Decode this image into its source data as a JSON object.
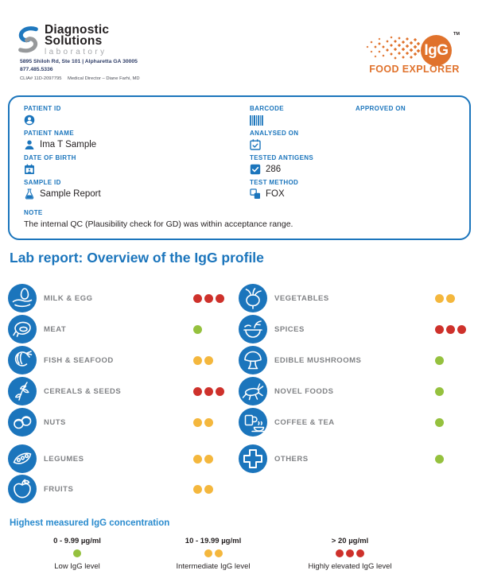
{
  "brand": {
    "name_line1": "Diagnostic",
    "name_line2": "Solutions",
    "name_line3": "laboratory",
    "address": "5895 Shiloh Rd, Ste 101  |  Alpharetta GA 30005",
    "phone": "877.485.5336",
    "clia": "CLIA# 11D-2097795",
    "director": "Medical Director – Diane Farhi, MD"
  },
  "product": {
    "badge": "IgG",
    "trademark": "TM",
    "title": "FOOD EXPLORER"
  },
  "patient_box": {
    "left": [
      {
        "label": "PATIENT ID",
        "value": "",
        "icon": "id-badge-icon"
      },
      {
        "label": "PATIENT NAME",
        "value": "Ima T Sample",
        "icon": "person-icon"
      },
      {
        "label": "DATE OF BIRTH",
        "value": "",
        "icon": "calendar-icon"
      },
      {
        "label": "SAMPLE ID",
        "value": "Sample Report",
        "icon": "flask-icon"
      }
    ],
    "middle": [
      {
        "label": "BARCODE",
        "value": "",
        "icon": "barcode-icon"
      },
      {
        "label": "ANALYSED ON",
        "value": "",
        "icon": "calendar-check-icon"
      },
      {
        "label": "TESTED ANTIGENS",
        "value": "286",
        "icon": "checkbox-check-icon"
      },
      {
        "label": "TEST METHOD",
        "value": "FOX",
        "icon": "method-squares-icon"
      }
    ],
    "right": [
      {
        "label": "APPROVED ON",
        "value": ""
      }
    ],
    "note_label": "NOTE",
    "note_text": "The internal QC (Plausibility check for GD) was within acceptance range."
  },
  "report": {
    "title": "Lab report: Overview of the IgG profile",
    "categories_left": [
      {
        "name": "MILK & EGG",
        "level": 3,
        "icon": "milk-egg-icon"
      },
      {
        "name": "MEAT",
        "level": 1,
        "icon": "meat-icon"
      },
      {
        "name": "FISH & SEAFOOD",
        "level": 2,
        "icon": "fish-seafood-icon"
      },
      {
        "name": "CEREALS & SEEDS",
        "level": 3,
        "icon": "cereals-seeds-icon"
      },
      {
        "name": "NUTS",
        "level": 2,
        "icon": "nuts-icon"
      },
      {
        "name": "LEGUMES",
        "level": 2,
        "icon": "legumes-icon"
      },
      {
        "name": "FRUITS",
        "level": 2,
        "icon": "fruits-icon"
      }
    ],
    "categories_right": [
      {
        "name": "VEGETABLES",
        "level": 2,
        "icon": "vegetables-icon"
      },
      {
        "name": "SPICES",
        "level": 3,
        "icon": "spices-icon"
      },
      {
        "name": "EDIBLE MUSHROOMS",
        "level": 1,
        "icon": "mushroom-icon"
      },
      {
        "name": "NOVEL FOODS",
        "level": 1,
        "icon": "cricket-icon"
      },
      {
        "name": "COFFEE & TEA",
        "level": 1,
        "icon": "coffee-tea-icon"
      },
      {
        "name": "OTHERS",
        "level": 1,
        "icon": "plus-cross-icon"
      }
    ]
  },
  "legend": {
    "title": "Highest measured IgG concentration",
    "levels": [
      {
        "range": "0 - 9.99 µg/ml",
        "dots": 1,
        "label": "Low IgG level"
      },
      {
        "range": "10 - 19.99 µg/ml",
        "dots": 2,
        "label": "Intermediate IgG level"
      },
      {
        "range": "> 20 µg/ml",
        "dots": 3,
        "label": "Highly elevated IgG level"
      }
    ]
  },
  "colors": {
    "blue": "#1B75BC",
    "light_blue": "#2A8BCE",
    "label_gray": "#808285",
    "green": "#95C13E",
    "yellow": "#F4B73D",
    "red": "#CE312B",
    "orange": "#E0722C",
    "logo_gray": "#97999B"
  }
}
